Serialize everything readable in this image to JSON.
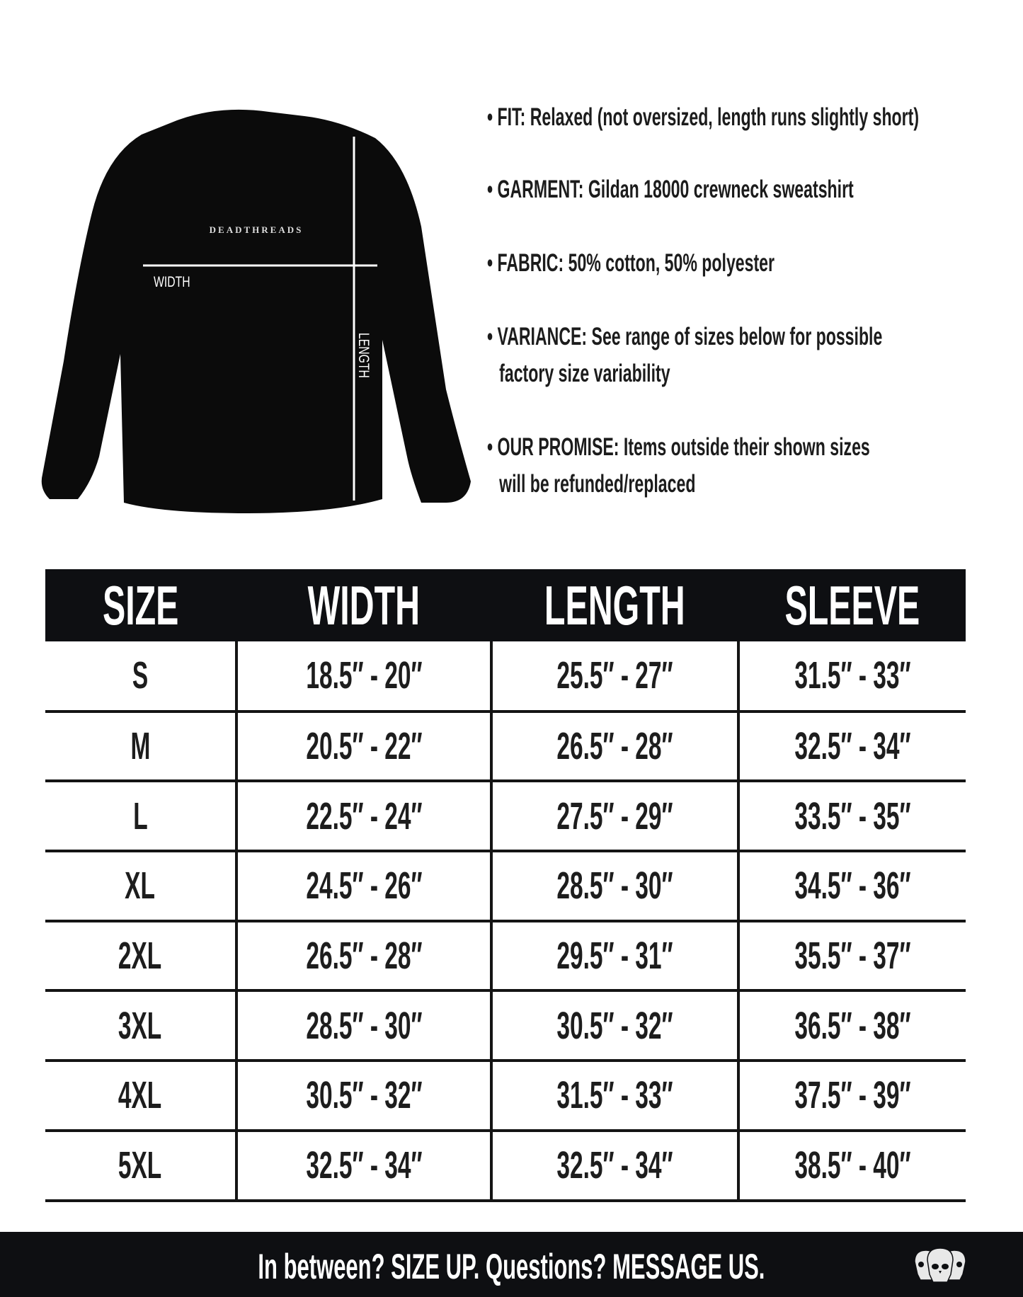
{
  "garment_diagram": {
    "brand_print": "DEADTHREADS",
    "width_label": "WIDTH",
    "length_label": "LENGTH"
  },
  "details": [
    {
      "lines": [
        "• FIT: Relaxed (not oversized, length runs slightly short)"
      ]
    },
    {
      "lines": [
        "• GARMENT: Gildan 18000 crewneck sweatshirt"
      ]
    },
    {
      "lines": [
        "• FABRIC: 50% cotton, 50% polyester"
      ]
    },
    {
      "lines": [
        "• VARIANCE: See range of sizes below for possible",
        "factory size variability"
      ]
    },
    {
      "lines": [
        "• OUR PROMISE: Items outside their shown sizes",
        "will be refunded/replaced"
      ]
    }
  ],
  "size_table": {
    "headers": [
      "SIZE",
      "WIDTH",
      "LENGTH",
      "SLEEVE"
    ],
    "rows": [
      [
        "S",
        "18.5″ - 20″",
        "25.5″ - 27″",
        "31.5″ - 33″"
      ],
      [
        "M",
        "20.5″ - 22″",
        "26.5″ - 28″",
        "32.5″ - 34″"
      ],
      [
        "L",
        "22.5″ - 24″",
        "27.5″ - 29″",
        "33.5″ - 35″"
      ],
      [
        "XL",
        "24.5″ - 26″",
        "28.5″ - 30″",
        "34.5″ - 36″"
      ],
      [
        "2XL",
        "26.5″ - 28″",
        "29.5″ - 31″",
        "35.5″ - 37″"
      ],
      [
        "3XL",
        "28.5″ - 30″",
        "30.5″ - 32″",
        "36.5″ - 38″"
      ],
      [
        "4XL",
        "30.5″ - 32″",
        "31.5″ - 33″",
        "37.5″ - 39″"
      ],
      [
        "5XL",
        "32.5″ - 34″",
        "32.5″ - 34″",
        "38.5″ - 40″"
      ]
    ]
  },
  "footer": {
    "text": "In between? SIZE UP. Questions? MESSAGE US.",
    "logo_icon": "three-skulls-logo"
  },
  "colors": {
    "header_bg": "#0e0f12",
    "text": "#1a1a1a",
    "garment": "#0b0b0b"
  }
}
